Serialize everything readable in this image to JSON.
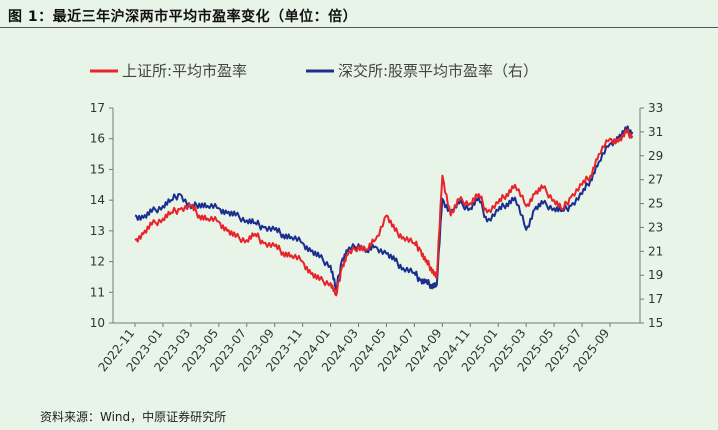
{
  "header": {
    "title": "图 1：最近三年沪深两市平均市盈率变化（单位：倍）"
  },
  "footer": {
    "source": "资料来源：Wind，中原证券研究所"
  },
  "colors": {
    "sh": "#e8232a",
    "sz": "#1a2f8f"
  },
  "chart_data": {
    "type": "line",
    "title": "最近三年沪深两市平均市盈率变化（单位：倍）",
    "x_ticks": [
      "2022-11",
      "2023-01",
      "2023-03",
      "2023-05",
      "2023-07",
      "2023-09",
      "2023-11",
      "2024-01",
      "2024-03",
      "2024-05",
      "2024-07",
      "2024-09",
      "2024-11",
      "2025-01",
      "2025-03",
      "2025-05",
      "2025-07",
      "2025-09"
    ],
    "y_left": {
      "min": 10,
      "max": 17,
      "ticks": [
        "10",
        "11",
        "12",
        "13",
        "14",
        "15",
        "16",
        "17"
      ]
    },
    "y_right": {
      "min": 15,
      "max": 33,
      "ticks": [
        "15",
        "17",
        "19",
        "21",
        "23",
        "25",
        "27",
        "29",
        "31",
        "33"
      ]
    },
    "series": [
      {
        "name": "上证所:平均市盈率",
        "axis": "left",
        "color": "#e8232a",
        "x": [
          0,
          0.3,
          0.6,
          1,
          1.3,
          1.6,
          2,
          2.3,
          2.6,
          3,
          3.3,
          3.6,
          4,
          4.3,
          4.6,
          5,
          5.3,
          5.6,
          6,
          6.3,
          6.6,
          7,
          7.2,
          7.4,
          7.6,
          8,
          8.3,
          8.6,
          9,
          9.3,
          9.6,
          10,
          10.2,
          10.4,
          10.6,
          10.8,
          11,
          11.3,
          11.6,
          12,
          12.3,
          12.6,
          13,
          13.3,
          13.6,
          14,
          14.3,
          14.6,
          15,
          15.3,
          15.6,
          16,
          16.3,
          16.6,
          17,
          17.3,
          17.6,
          17.8
        ],
        "values": [
          12.7,
          12.9,
          13.2,
          13.4,
          13.6,
          13.7,
          13.8,
          13.5,
          13.4,
          13.3,
          13.0,
          12.8,
          12.7,
          12.9,
          12.6,
          12.5,
          12.3,
          12.2,
          12.0,
          11.6,
          11.4,
          11.3,
          10.9,
          11.8,
          12.2,
          12.5,
          12.4,
          12.7,
          13.5,
          13.0,
          12.8,
          12.6,
          12.4,
          12.0,
          11.8,
          11.5,
          14.8,
          13.5,
          14.0,
          13.9,
          14.2,
          13.6,
          13.9,
          14.2,
          14.5,
          13.8,
          14.2,
          14.4,
          14.0,
          13.7,
          14.1,
          14.5,
          14.8,
          15.5,
          16.0,
          15.9,
          16.2,
          16.1
        ]
      },
      {
        "name": "深交所:股票平均市盈率（右）",
        "axis": "right",
        "color": "#1a2f8f",
        "x": [
          0,
          0.3,
          0.6,
          1,
          1.3,
          1.6,
          2,
          2.3,
          2.6,
          3,
          3.3,
          3.6,
          4,
          4.3,
          4.6,
          5,
          5.3,
          5.6,
          6,
          6.3,
          6.6,
          7,
          7.2,
          7.4,
          7.6,
          8,
          8.3,
          8.6,
          9,
          9.3,
          9.6,
          10,
          10.2,
          10.4,
          10.6,
          10.8,
          11,
          11.3,
          11.6,
          12,
          12.3,
          12.6,
          13,
          13.3,
          13.6,
          14,
          14.3,
          14.6,
          15,
          15.3,
          15.6,
          16,
          16.3,
          16.6,
          17,
          17.3,
          17.6,
          17.8
        ],
        "values": [
          24.0,
          23.8,
          24.3,
          24.8,
          25.3,
          25.8,
          24.6,
          25.0,
          24.8,
          24.6,
          24.2,
          24.0,
          23.6,
          23.4,
          23.0,
          22.8,
          22.4,
          22.2,
          21.7,
          21.0,
          20.5,
          19.8,
          17.8,
          20.2,
          21.0,
          21.6,
          21.0,
          21.4,
          20.8,
          20.2,
          19.6,
          19.2,
          18.6,
          18.4,
          18.2,
          18.2,
          25.4,
          24.2,
          25.0,
          24.6,
          25.5,
          23.5,
          24.4,
          25.0,
          25.5,
          22.8,
          24.5,
          25.0,
          24.6,
          24.4,
          24.8,
          25.8,
          27.0,
          28.5,
          30.0,
          30.5,
          31.2,
          31.0
        ]
      }
    ]
  },
  "legend": {
    "sh_label": "上证所:平均市盈率",
    "sz_label": "深交所:股票平均市盈率（右）"
  }
}
